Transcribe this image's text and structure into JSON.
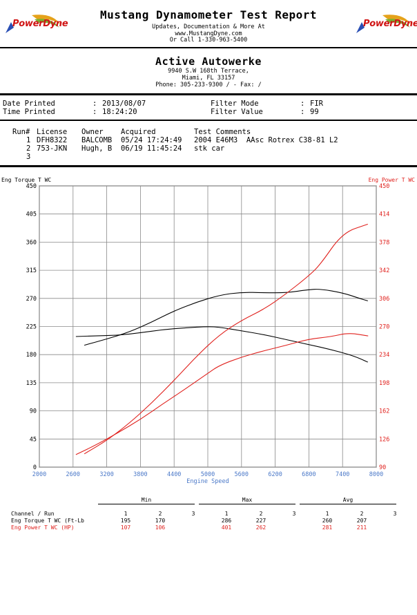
{
  "header": {
    "brand": "PowerDyne",
    "title": "Mustang Dynamometer Test Report",
    "sub_lines": [
      "Updates, Documentation & More At",
      "www.MustangDyne.com",
      "Or Call 1-330-963-5400"
    ]
  },
  "shop": {
    "name": "Active Autowerke",
    "lines": [
      "9940 S.W 168th Terrace,",
      "Miami, FL  33157",
      "Phone: 305-233-9300 /  - Fax:  /"
    ]
  },
  "info": {
    "date_label": "Date Printed",
    "date_value": "2013/08/07",
    "time_label": "Time Printed",
    "time_value": "18:24:20",
    "filter_mode_label": "Filter Mode",
    "filter_mode_value": "FIR",
    "filter_value_label": "Filter Value",
    "filter_value_value": "99"
  },
  "runs": {
    "headers": [
      "Run#",
      "License",
      "Owner",
      "Acquired",
      "Test Comments"
    ],
    "rows": [
      {
        "run": "1",
        "license": "DFH8322",
        "owner": "BALCOMB",
        "acquired": "05/24 17:24:49",
        "comment": "2004 E46M3  AAsc Rotrex C38-81 L2"
      },
      {
        "run": "2",
        "license": "753-JKN",
        "owner": "Hugh, B",
        "acquired": "06/19 11:45:24",
        "comment": "stk car"
      },
      {
        "run": "3",
        "license": "",
        "owner": "",
        "acquired": "",
        "comment": ""
      }
    ]
  },
  "colors": {
    "torque": "#000000",
    "power": "#e0201c",
    "xaxis": "#4a78c8"
  },
  "chart_data": {
    "type": "line",
    "xlabel": "Engine Speed",
    "ylabel_left": "Eng Torque T WC",
    "ylabel_right": "Eng Power T WC",
    "xlim": [
      2000,
      8000
    ],
    "ylim_left": [
      0,
      450
    ],
    "ylim_right": [
      90,
      450
    ],
    "x_ticks": [
      2000,
      2600,
      3200,
      3800,
      4400,
      5000,
      5600,
      6200,
      6800,
      7400,
      8000
    ],
    "y_ticks_left": [
      0,
      45,
      90,
      135,
      180,
      225,
      270,
      315,
      360,
      405,
      450
    ],
    "y_ticks_right": [
      90,
      126,
      162,
      198,
      234,
      270,
      306,
      342,
      378,
      414,
      450
    ],
    "grid": true,
    "series": [
      {
        "name": "Eng Torque T WC",
        "run": "1",
        "axis": "left",
        "color": "#000000",
        "points": [
          [
            2800,
            195
          ],
          [
            3200,
            205
          ],
          [
            3600,
            216
          ],
          [
            4000,
            232
          ],
          [
            4400,
            250
          ],
          [
            4800,
            264
          ],
          [
            5200,
            275
          ],
          [
            5600,
            280
          ],
          [
            6000,
            279
          ],
          [
            6400,
            279
          ],
          [
            6800,
            284
          ],
          [
            7000,
            285
          ],
          [
            7400,
            279
          ],
          [
            7700,
            270
          ],
          [
            7850,
            266
          ]
        ]
      },
      {
        "name": "Eng Torque T WC",
        "run": "2",
        "axis": "left",
        "color": "#000000",
        "points": [
          [
            2650,
            209
          ],
          [
            3000,
            210
          ],
          [
            3400,
            211
          ],
          [
            3800,
            215
          ],
          [
            4200,
            220
          ],
          [
            4600,
            223
          ],
          [
            5000,
            225
          ],
          [
            5200,
            224
          ],
          [
            5600,
            218
          ],
          [
            6000,
            212
          ],
          [
            6400,
            204
          ],
          [
            6800,
            196
          ],
          [
            7200,
            188
          ],
          [
            7600,
            178
          ],
          [
            7850,
            168
          ]
        ]
      },
      {
        "name": "Eng Power T WC",
        "run": "1",
        "axis": "right",
        "color": "#e0201c",
        "points": [
          [
            2800,
            107
          ],
          [
            3200,
            124
          ],
          [
            3600,
            146
          ],
          [
            4000,
            172
          ],
          [
            4400,
            201
          ],
          [
            4800,
            232
          ],
          [
            5200,
            259
          ],
          [
            5600,
            278
          ],
          [
            6000,
            292
          ],
          [
            6400,
            312
          ],
          [
            6800,
            335
          ],
          [
            7000,
            349
          ],
          [
            7400,
            390
          ],
          [
            7850,
            401
          ]
        ]
      },
      {
        "name": "Eng Power T WC",
        "run": "2",
        "axis": "right",
        "color": "#e0201c",
        "points": [
          [
            2650,
            106
          ],
          [
            3000,
            118
          ],
          [
            3400,
            134
          ],
          [
            3800,
            151
          ],
          [
            4200,
            171
          ],
          [
            4600,
            190
          ],
          [
            5000,
            210
          ],
          [
            5200,
            220
          ],
          [
            5600,
            231
          ],
          [
            6000,
            239
          ],
          [
            6400,
            246
          ],
          [
            6800,
            254
          ],
          [
            7200,
            257
          ],
          [
            7500,
            262
          ],
          [
            7850,
            258
          ]
        ]
      }
    ]
  },
  "summary": {
    "group_min": "Min",
    "group_max": "Max",
    "group_avg": "Avg",
    "channel_run_label": "Channel / Run",
    "run_cols": [
      "1",
      "2",
      "3"
    ],
    "rows": [
      {
        "label": "Eng Torque T WC (Ft-Lb",
        "min": [
          "195",
          "170",
          ""
        ],
        "max": [
          "286",
          "227",
          ""
        ],
        "avg": [
          "260",
          "207",
          ""
        ]
      },
      {
        "label": "Eng Power T WC (HP)",
        "min": [
          "107",
          "106",
          ""
        ],
        "max": [
          "401",
          "262",
          ""
        ],
        "avg": [
          "281",
          "211",
          ""
        ]
      }
    ]
  }
}
